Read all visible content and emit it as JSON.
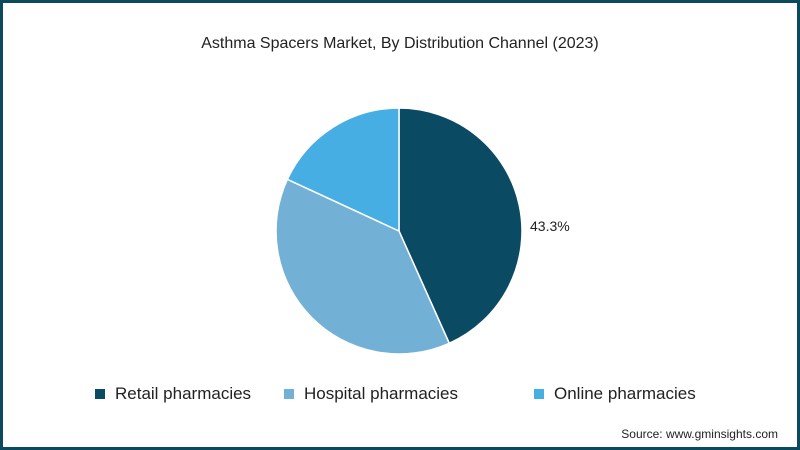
{
  "chart_data": {
    "type": "pie",
    "title": "Asthma Spacers Market, By Distribution Channel (2023)",
    "categories": [
      "Retail pharmacies",
      "Hospital pharmacies",
      "Online pharmacies"
    ],
    "values": [
      43.3,
      38.6,
      18.1
    ],
    "colors": [
      "#0b4a63",
      "#72b1d5",
      "#46aee3"
    ],
    "data_labels": [
      "43.3%",
      "",
      ""
    ],
    "legend_position": "bottom",
    "start_angle": "12 o'clock, clockwise"
  },
  "title": "Asthma Spacers Market, By Distribution Channel (2023)",
  "slice_label": "43.3%",
  "legend": [
    {
      "label": "Retail pharmacies",
      "color": "#0b4a63"
    },
    {
      "label": "Hospital pharmacies",
      "color": "#72b1d5"
    },
    {
      "label": "Online pharmacies",
      "color": "#46aee3"
    }
  ],
  "source": "Source: www.gminsights.com",
  "border_color": "#0b4a5e"
}
